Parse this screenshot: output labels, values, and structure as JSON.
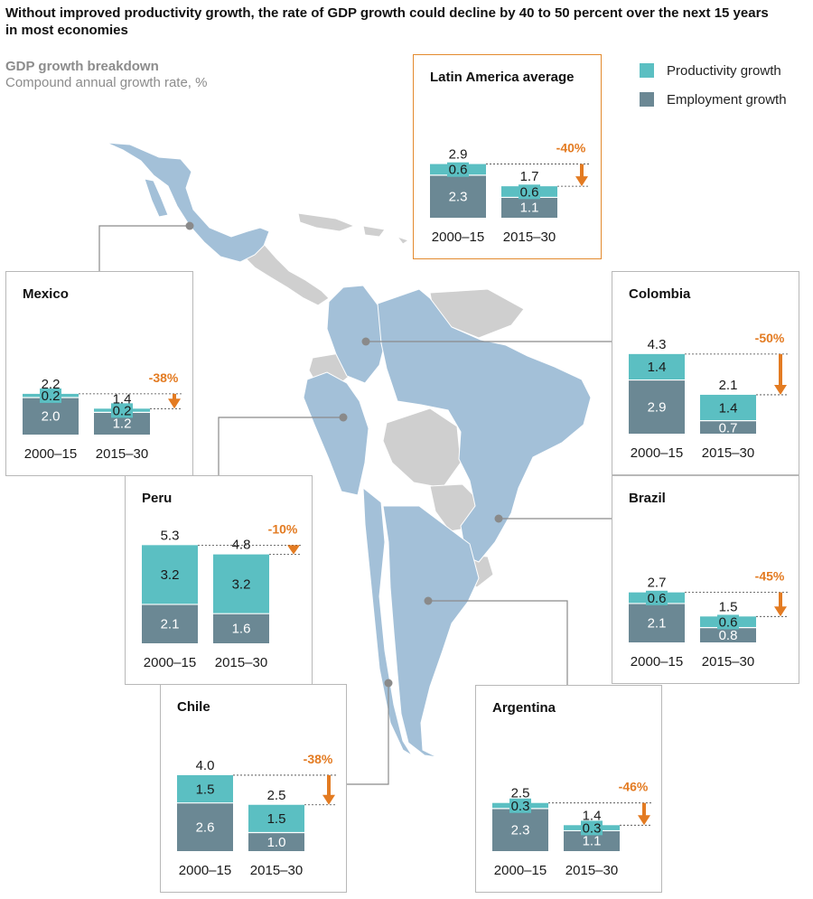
{
  "title": "Without improved productivity growth, the rate of GDP growth could decline by 40 to 50 percent over the next 15 years in most economies",
  "subtitle": "GDP growth breakdown",
  "subtitle2": "Compound annual growth rate, %",
  "colors": {
    "productivity": "#5bbfc2",
    "employment": "#6b8894",
    "decline": "#e37b22",
    "map_land": "#a3c0d8",
    "map_other": "#cfcfcf",
    "panel_border": "#b8b8b8",
    "avg_border": "#e38a2e"
  },
  "legend": [
    {
      "label": "Productivity growth",
      "color": "#5bbfc2"
    },
    {
      "label": "Employment growth",
      "color": "#6b8894"
    }
  ],
  "chart_data": [
    {
      "type": "bar",
      "stacked": true,
      "title": "Latin America average",
      "categories": [
        "2000–15",
        "2015–30"
      ],
      "series": [
        {
          "name": "Employment growth",
          "values": [
            2.3,
            1.1
          ]
        },
        {
          "name": "Productivity growth",
          "values": [
            0.6,
            0.6
          ]
        }
      ],
      "totals": [
        "2.9",
        "1.7"
      ],
      "decline": "-40%"
    },
    {
      "type": "bar",
      "stacked": true,
      "title": "Mexico",
      "categories": [
        "2000–15",
        "2015–30"
      ],
      "series": [
        {
          "name": "Employment growth",
          "values": [
            2.0,
            1.2
          ]
        },
        {
          "name": "Productivity growth",
          "values": [
            0.2,
            0.2
          ]
        }
      ],
      "totals": [
        "2.2",
        "1.4"
      ],
      "decline": "-38%"
    },
    {
      "type": "bar",
      "stacked": true,
      "title": "Colombia",
      "categories": [
        "2000–15",
        "2015–30"
      ],
      "series": [
        {
          "name": "Employment growth",
          "values": [
            2.9,
            0.7
          ]
        },
        {
          "name": "Productivity growth",
          "values": [
            1.4,
            1.4
          ]
        }
      ],
      "totals": [
        "4.3",
        "2.1"
      ],
      "decline": "-50%"
    },
    {
      "type": "bar",
      "stacked": true,
      "title": "Peru",
      "categories": [
        "2000–15",
        "2015–30"
      ],
      "series": [
        {
          "name": "Employment growth",
          "values": [
            2.1,
            1.6
          ]
        },
        {
          "name": "Productivity growth",
          "values": [
            3.2,
            3.2
          ]
        }
      ],
      "totals": [
        "5.3",
        "4.8"
      ],
      "decline": "-10%"
    },
    {
      "type": "bar",
      "stacked": true,
      "title": "Brazil",
      "categories": [
        "2000–15",
        "2015–30"
      ],
      "series": [
        {
          "name": "Employment growth",
          "values": [
            2.1,
            0.8
          ]
        },
        {
          "name": "Productivity growth",
          "values": [
            0.6,
            0.6
          ]
        }
      ],
      "totals": [
        "2.7",
        "1.5"
      ],
      "decline": "-45%"
    },
    {
      "type": "bar",
      "stacked": true,
      "title": "Chile",
      "categories": [
        "2000–15",
        "2015–30"
      ],
      "series": [
        {
          "name": "Employment growth",
          "values": [
            2.6,
            1.0
          ]
        },
        {
          "name": "Productivity growth",
          "values": [
            1.5,
            1.5
          ]
        }
      ],
      "totals": [
        "4.0",
        "2.5"
      ],
      "decline": "-38%"
    },
    {
      "type": "bar",
      "stacked": true,
      "title": "Argentina",
      "categories": [
        "2000–15",
        "2015–30"
      ],
      "series": [
        {
          "name": "Employment growth",
          "values": [
            2.3,
            1.1
          ]
        },
        {
          "name": "Productivity growth",
          "values": [
            0.3,
            0.3
          ]
        }
      ],
      "totals": [
        "2.5",
        "1.4"
      ],
      "decline": "-46%"
    }
  ]
}
